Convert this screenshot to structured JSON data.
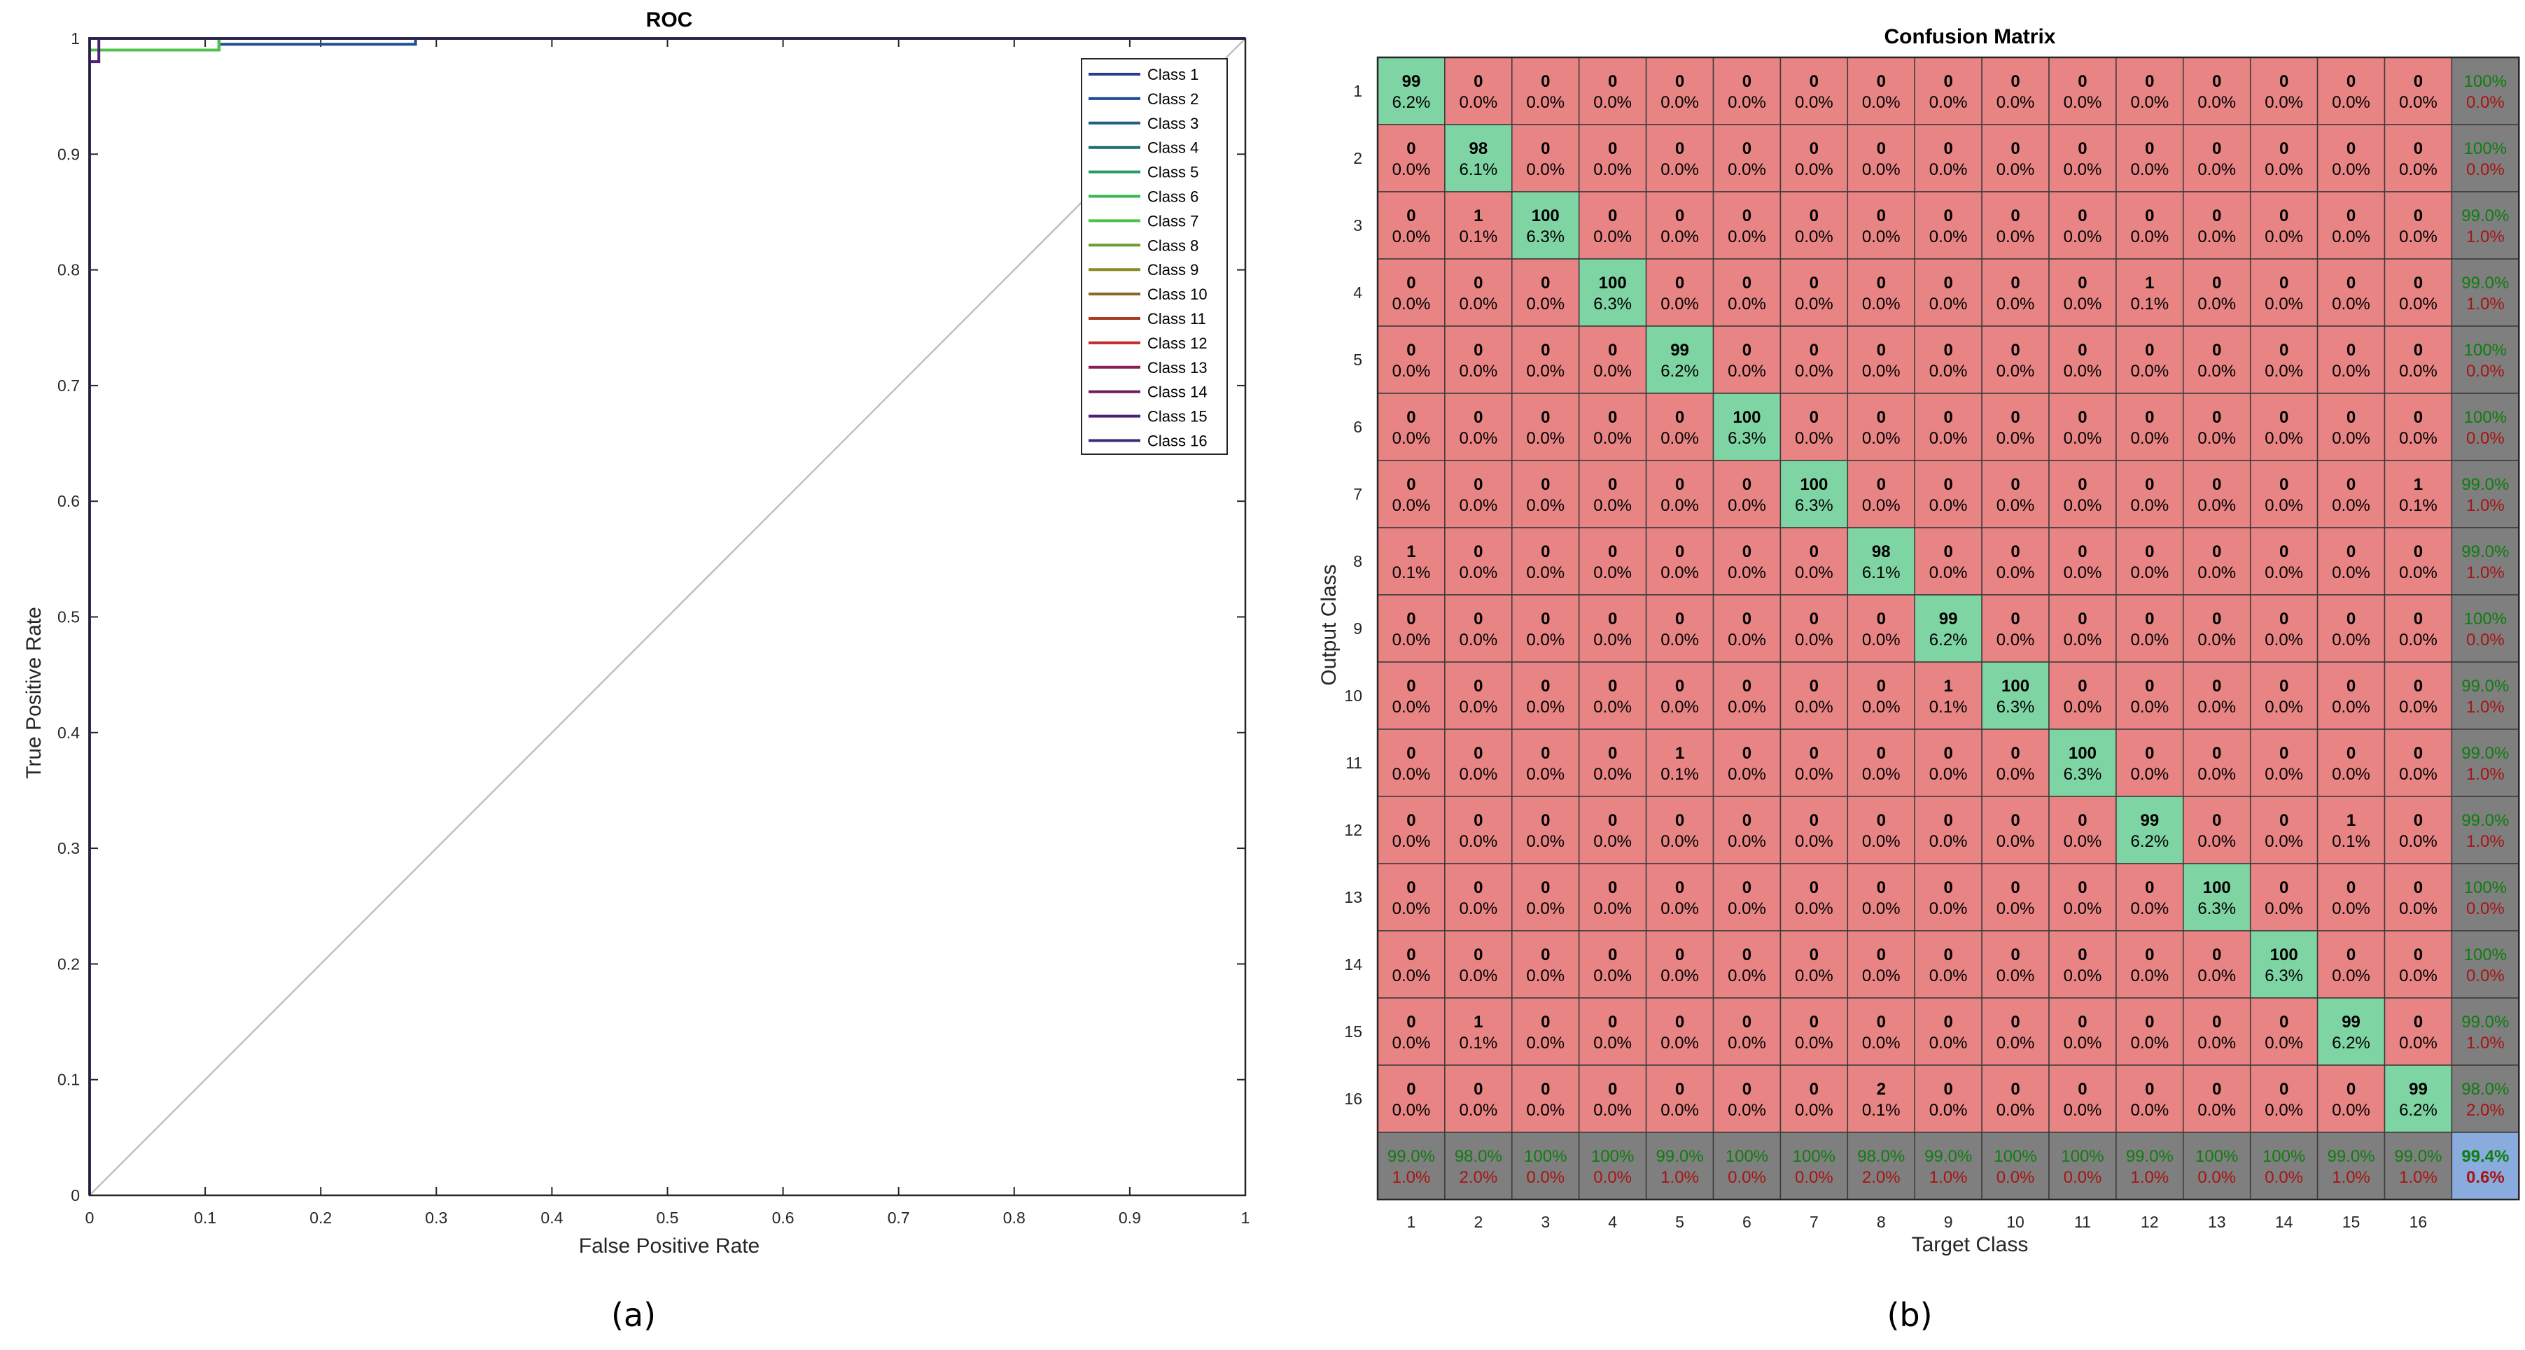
{
  "figure": {
    "caption_a": "(a)",
    "caption_b": "(b)"
  },
  "colors": {
    "correct": "#7fd4a4",
    "incorrect": "#e88484",
    "summary": "#7f7f7f",
    "overall": "#8aabde",
    "summary_good": "#0f7d0f",
    "summary_bad": "#a81414",
    "diagonal": "#c0c0c0",
    "class_colors": [
      "#2b3a8f",
      "#1f4f8f",
      "#1e5f85",
      "#1b6f6f",
      "#2b9b66",
      "#36b84e",
      "#4cc24a",
      "#6e9b33",
      "#8a8a26",
      "#8a6624",
      "#a83c25",
      "#c42a2a",
      "#8a1f52",
      "#6a1f5b",
      "#4e1f72",
      "#3a2b7f"
    ]
  },
  "chart_data": [
    {
      "type": "line",
      "title": "ROC",
      "xlabel": "False Positive Rate",
      "ylabel": "True Positive Rate",
      "xlim": [
        0,
        1
      ],
      "ylim": [
        0,
        1
      ],
      "xticks": [
        "0",
        "0.1",
        "0.2",
        "0.3",
        "0.4",
        "0.5",
        "0.6",
        "0.7",
        "0.8",
        "0.9",
        "1"
      ],
      "yticks": [
        "0",
        "0.1",
        "0.2",
        "0.3",
        "0.4",
        "0.5",
        "0.6",
        "0.7",
        "0.8",
        "0.9",
        "1"
      ],
      "reference_line": [
        [
          0,
          0
        ],
        [
          1,
          1
        ]
      ],
      "legend": [
        "Class 1",
        "Class 2",
        "Class 3",
        "Class 4",
        "Class 5",
        "Class 6",
        "Class 7",
        "Class 8",
        "Class 9",
        "Class 10",
        "Class 11",
        "Class 12",
        "Class 13",
        "Class 14",
        "Class 15",
        "Class 16"
      ],
      "series": [
        {
          "name": "Class 1",
          "x": [
            0,
            0,
            1
          ],
          "y": [
            0,
            1,
            1
          ]
        },
        {
          "name": "Class 2",
          "x": [
            0,
            0,
            0.112,
            0.112,
            0.282,
            0.282,
            1
          ],
          "y": [
            0,
            0.99,
            0.99,
            0.995,
            0.995,
            1,
            1
          ]
        },
        {
          "name": "Class 3",
          "x": [
            0,
            0,
            0.112,
            0.112,
            1
          ],
          "y": [
            0,
            0.99,
            0.99,
            1,
            1
          ]
        },
        {
          "name": "Class 4",
          "x": [
            0,
            0,
            0.112,
            0.112,
            1
          ],
          "y": [
            0,
            0.99,
            0.99,
            1,
            1
          ]
        },
        {
          "name": "Class 5",
          "x": [
            0,
            0,
            1
          ],
          "y": [
            0,
            1,
            1
          ]
        },
        {
          "name": "Class 6",
          "x": [
            0,
            0,
            1
          ],
          "y": [
            0,
            1,
            1
          ]
        },
        {
          "name": "Class 7",
          "x": [
            0,
            0,
            0.112,
            0.112,
            1
          ],
          "y": [
            0,
            0.99,
            0.99,
            1,
            1
          ]
        },
        {
          "name": "Class 8",
          "x": [
            0,
            0,
            1
          ],
          "y": [
            0,
            1,
            1
          ]
        },
        {
          "name": "Class 9",
          "x": [
            0,
            0,
            1
          ],
          "y": [
            0,
            1,
            1
          ]
        },
        {
          "name": "Class 10",
          "x": [
            0,
            0,
            1
          ],
          "y": [
            0,
            1,
            1
          ]
        },
        {
          "name": "Class 11",
          "x": [
            0,
            0,
            1
          ],
          "y": [
            0,
            1,
            1
          ]
        },
        {
          "name": "Class 12",
          "x": [
            0,
            0,
            1
          ],
          "y": [
            0,
            1,
            1
          ]
        },
        {
          "name": "Class 13",
          "x": [
            0,
            0,
            1
          ],
          "y": [
            0,
            1,
            1
          ]
        },
        {
          "name": "Class 14",
          "x": [
            0,
            0,
            1
          ],
          "y": [
            0,
            1,
            1
          ]
        },
        {
          "name": "Class 15",
          "x": [
            0,
            0,
            0.008,
            0.008,
            1
          ],
          "y": [
            0,
            0.98,
            0.98,
            1,
            1
          ]
        },
        {
          "name": "Class 16",
          "x": [
            0,
            0,
            1
          ],
          "y": [
            0,
            1,
            1
          ]
        }
      ]
    },
    {
      "type": "heatmap",
      "title": "Confusion Matrix",
      "xlabel": "Target Class",
      "ylabel": "Output Class",
      "classes": [
        "1",
        "2",
        "3",
        "4",
        "5",
        "6",
        "7",
        "8",
        "9",
        "10",
        "11",
        "12",
        "13",
        "14",
        "15",
        "16"
      ],
      "counts": [
        [
          99,
          0,
          0,
          0,
          0,
          0,
          0,
          0,
          0,
          0,
          0,
          0,
          0,
          0,
          0,
          0
        ],
        [
          0,
          98,
          0,
          0,
          0,
          0,
          0,
          0,
          0,
          0,
          0,
          0,
          0,
          0,
          0,
          0
        ],
        [
          0,
          1,
          100,
          0,
          0,
          0,
          0,
          0,
          0,
          0,
          0,
          0,
          0,
          0,
          0,
          0
        ],
        [
          0,
          0,
          0,
          100,
          0,
          0,
          0,
          0,
          0,
          0,
          0,
          1,
          0,
          0,
          0,
          0
        ],
        [
          0,
          0,
          0,
          0,
          99,
          0,
          0,
          0,
          0,
          0,
          0,
          0,
          0,
          0,
          0,
          0
        ],
        [
          0,
          0,
          0,
          0,
          0,
          100,
          0,
          0,
          0,
          0,
          0,
          0,
          0,
          0,
          0,
          0
        ],
        [
          0,
          0,
          0,
          0,
          0,
          0,
          100,
          0,
          0,
          0,
          0,
          0,
          0,
          0,
          0,
          1
        ],
        [
          1,
          0,
          0,
          0,
          0,
          0,
          0,
          98,
          0,
          0,
          0,
          0,
          0,
          0,
          0,
          0
        ],
        [
          0,
          0,
          0,
          0,
          0,
          0,
          0,
          0,
          99,
          0,
          0,
          0,
          0,
          0,
          0,
          0
        ],
        [
          0,
          0,
          0,
          0,
          0,
          0,
          0,
          0,
          1,
          100,
          0,
          0,
          0,
          0,
          0,
          0
        ],
        [
          0,
          0,
          0,
          0,
          1,
          0,
          0,
          0,
          0,
          0,
          100,
          0,
          0,
          0,
          0,
          0
        ],
        [
          0,
          0,
          0,
          0,
          0,
          0,
          0,
          0,
          0,
          0,
          0,
          99,
          0,
          0,
          1,
          0
        ],
        [
          0,
          0,
          0,
          0,
          0,
          0,
          0,
          0,
          0,
          0,
          0,
          0,
          100,
          0,
          0,
          0
        ],
        [
          0,
          0,
          0,
          0,
          0,
          0,
          0,
          0,
          0,
          0,
          0,
          0,
          0,
          100,
          0,
          0
        ],
        [
          0,
          1,
          0,
          0,
          0,
          0,
          0,
          0,
          0,
          0,
          0,
          0,
          0,
          0,
          99,
          0
        ],
        [
          0,
          0,
          0,
          0,
          0,
          0,
          0,
          2,
          0,
          0,
          0,
          0,
          0,
          0,
          0,
          99
        ]
      ],
      "percents": [
        [
          "6.2%",
          "0.0%",
          "0.0%",
          "0.0%",
          "0.0%",
          "0.0%",
          "0.0%",
          "0.0%",
          "0.0%",
          "0.0%",
          "0.0%",
          "0.0%",
          "0.0%",
          "0.0%",
          "0.0%",
          "0.0%"
        ],
        [
          "0.0%",
          "6.1%",
          "0.0%",
          "0.0%",
          "0.0%",
          "0.0%",
          "0.0%",
          "0.0%",
          "0.0%",
          "0.0%",
          "0.0%",
          "0.0%",
          "0.0%",
          "0.0%",
          "0.0%",
          "0.0%"
        ],
        [
          "0.0%",
          "0.1%",
          "6.3%",
          "0.0%",
          "0.0%",
          "0.0%",
          "0.0%",
          "0.0%",
          "0.0%",
          "0.0%",
          "0.0%",
          "0.0%",
          "0.0%",
          "0.0%",
          "0.0%",
          "0.0%"
        ],
        [
          "0.0%",
          "0.0%",
          "0.0%",
          "6.3%",
          "0.0%",
          "0.0%",
          "0.0%",
          "0.0%",
          "0.0%",
          "0.0%",
          "0.0%",
          "0.1%",
          "0.0%",
          "0.0%",
          "0.0%",
          "0.0%"
        ],
        [
          "0.0%",
          "0.0%",
          "0.0%",
          "0.0%",
          "6.2%",
          "0.0%",
          "0.0%",
          "0.0%",
          "0.0%",
          "0.0%",
          "0.0%",
          "0.0%",
          "0.0%",
          "0.0%",
          "0.0%",
          "0.0%"
        ],
        [
          "0.0%",
          "0.0%",
          "0.0%",
          "0.0%",
          "0.0%",
          "6.3%",
          "0.0%",
          "0.0%",
          "0.0%",
          "0.0%",
          "0.0%",
          "0.0%",
          "0.0%",
          "0.0%",
          "0.0%",
          "0.0%"
        ],
        [
          "0.0%",
          "0.0%",
          "0.0%",
          "0.0%",
          "0.0%",
          "0.0%",
          "6.3%",
          "0.0%",
          "0.0%",
          "0.0%",
          "0.0%",
          "0.0%",
          "0.0%",
          "0.0%",
          "0.0%",
          "0.1%"
        ],
        [
          "0.1%",
          "0.0%",
          "0.0%",
          "0.0%",
          "0.0%",
          "0.0%",
          "0.0%",
          "6.1%",
          "0.0%",
          "0.0%",
          "0.0%",
          "0.0%",
          "0.0%",
          "0.0%",
          "0.0%",
          "0.0%"
        ],
        [
          "0.0%",
          "0.0%",
          "0.0%",
          "0.0%",
          "0.0%",
          "0.0%",
          "0.0%",
          "0.0%",
          "6.2%",
          "0.0%",
          "0.0%",
          "0.0%",
          "0.0%",
          "0.0%",
          "0.0%",
          "0.0%"
        ],
        [
          "0.0%",
          "0.0%",
          "0.0%",
          "0.0%",
          "0.0%",
          "0.0%",
          "0.0%",
          "0.0%",
          "0.1%",
          "6.3%",
          "0.0%",
          "0.0%",
          "0.0%",
          "0.0%",
          "0.0%",
          "0.0%"
        ],
        [
          "0.0%",
          "0.0%",
          "0.0%",
          "0.0%",
          "0.1%",
          "0.0%",
          "0.0%",
          "0.0%",
          "0.0%",
          "0.0%",
          "6.3%",
          "0.0%",
          "0.0%",
          "0.0%",
          "0.0%",
          "0.0%"
        ],
        [
          "0.0%",
          "0.0%",
          "0.0%",
          "0.0%",
          "0.0%",
          "0.0%",
          "0.0%",
          "0.0%",
          "0.0%",
          "0.0%",
          "0.0%",
          "6.2%",
          "0.0%",
          "0.0%",
          "0.1%",
          "0.0%"
        ],
        [
          "0.0%",
          "0.0%",
          "0.0%",
          "0.0%",
          "0.0%",
          "0.0%",
          "0.0%",
          "0.0%",
          "0.0%",
          "0.0%",
          "0.0%",
          "0.0%",
          "6.3%",
          "0.0%",
          "0.0%",
          "0.0%"
        ],
        [
          "0.0%",
          "0.0%",
          "0.0%",
          "0.0%",
          "0.0%",
          "0.0%",
          "0.0%",
          "0.0%",
          "0.0%",
          "0.0%",
          "0.0%",
          "0.0%",
          "0.0%",
          "6.3%",
          "0.0%",
          "0.0%"
        ],
        [
          "0.0%",
          "0.1%",
          "0.0%",
          "0.0%",
          "0.0%",
          "0.0%",
          "0.0%",
          "0.0%",
          "0.0%",
          "0.0%",
          "0.0%",
          "0.0%",
          "0.0%",
          "0.0%",
          "6.2%",
          "0.0%"
        ],
        [
          "0.0%",
          "0.0%",
          "0.0%",
          "0.0%",
          "0.0%",
          "0.0%",
          "0.0%",
          "0.1%",
          "0.0%",
          "0.0%",
          "0.0%",
          "0.0%",
          "0.0%",
          "0.0%",
          "0.0%",
          "6.2%"
        ]
      ],
      "row_summary": [
        [
          "100%",
          "0.0%"
        ],
        [
          "100%",
          "0.0%"
        ],
        [
          "99.0%",
          "1.0%"
        ],
        [
          "99.0%",
          "1.0%"
        ],
        [
          "100%",
          "0.0%"
        ],
        [
          "100%",
          "0.0%"
        ],
        [
          "99.0%",
          "1.0%"
        ],
        [
          "99.0%",
          "1.0%"
        ],
        [
          "100%",
          "0.0%"
        ],
        [
          "99.0%",
          "1.0%"
        ],
        [
          "99.0%",
          "1.0%"
        ],
        [
          "99.0%",
          "1.0%"
        ],
        [
          "100%",
          "0.0%"
        ],
        [
          "100%",
          "0.0%"
        ],
        [
          "99.0%",
          "1.0%"
        ],
        [
          "98.0%",
          "2.0%"
        ]
      ],
      "col_summary": [
        [
          "99.0%",
          "1.0%"
        ],
        [
          "98.0%",
          "2.0%"
        ],
        [
          "100%",
          "0.0%"
        ],
        [
          "100%",
          "0.0%"
        ],
        [
          "99.0%",
          "1.0%"
        ],
        [
          "100%",
          "0.0%"
        ],
        [
          "100%",
          "0.0%"
        ],
        [
          "98.0%",
          "2.0%"
        ],
        [
          "99.0%",
          "1.0%"
        ],
        [
          "100%",
          "0.0%"
        ],
        [
          "100%",
          "0.0%"
        ],
        [
          "99.0%",
          "1.0%"
        ],
        [
          "100%",
          "0.0%"
        ],
        [
          "100%",
          "0.0%"
        ],
        [
          "99.0%",
          "1.0%"
        ],
        [
          "99.0%",
          "1.0%"
        ]
      ],
      "overall": [
        "99.4%",
        "0.6%"
      ]
    }
  ]
}
